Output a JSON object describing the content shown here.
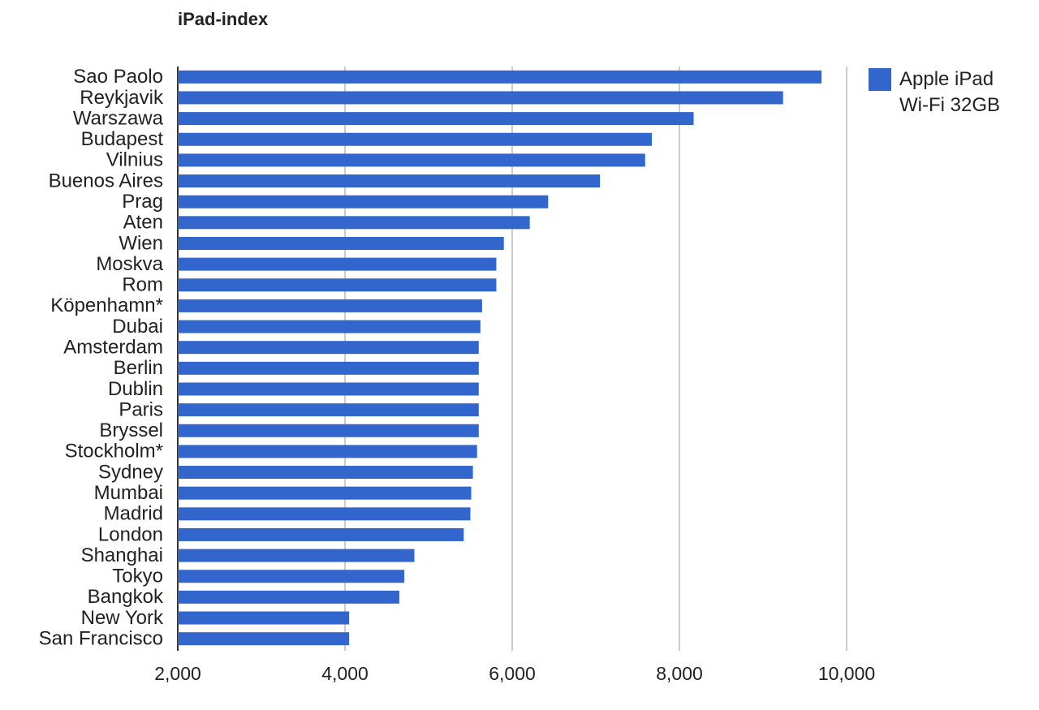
{
  "chart_data": {
    "type": "bar",
    "orientation": "horizontal",
    "title": "iPad-index",
    "categories": [
      "Sao Paolo",
      "Reykjavik",
      "Warszawa",
      "Budapest",
      "Vilnius",
      "Buenos Aires",
      "Prag",
      "Aten",
      "Wien",
      "Moskva",
      "Rom",
      "Köpenhamn*",
      "Dubai",
      "Amsterdam",
      "Berlin",
      "Dublin",
      "Paris",
      "Bryssel",
      "Stockholm*",
      "Sydney",
      "Mumbai",
      "Madrid",
      "London",
      "Shanghai",
      "Tokyo",
      "Bangkok",
      "New York",
      "San Francisco"
    ],
    "series": [
      {
        "name": "Apple iPad Wi-Fi 32GB",
        "color": "#3366cc",
        "values": [
          9700,
          9240,
          8170,
          7670,
          7590,
          7050,
          6430,
          6210,
          5900,
          5810,
          5810,
          5640,
          5620,
          5600,
          5600,
          5600,
          5600,
          5600,
          5580,
          5530,
          5510,
          5500,
          5420,
          4830,
          4710,
          4650,
          4050,
          4050
        ]
      }
    ],
    "xlim": [
      2000,
      10000
    ],
    "xticks": [
      {
        "value": 2000,
        "label": "2,000"
      },
      {
        "value": 4000,
        "label": "4,000"
      },
      {
        "value": 6000,
        "label": "6,000"
      },
      {
        "value": 8000,
        "label": "8,000"
      },
      {
        "value": 10000,
        "label": "10,000"
      }
    ],
    "grid": true,
    "legend": "right"
  }
}
